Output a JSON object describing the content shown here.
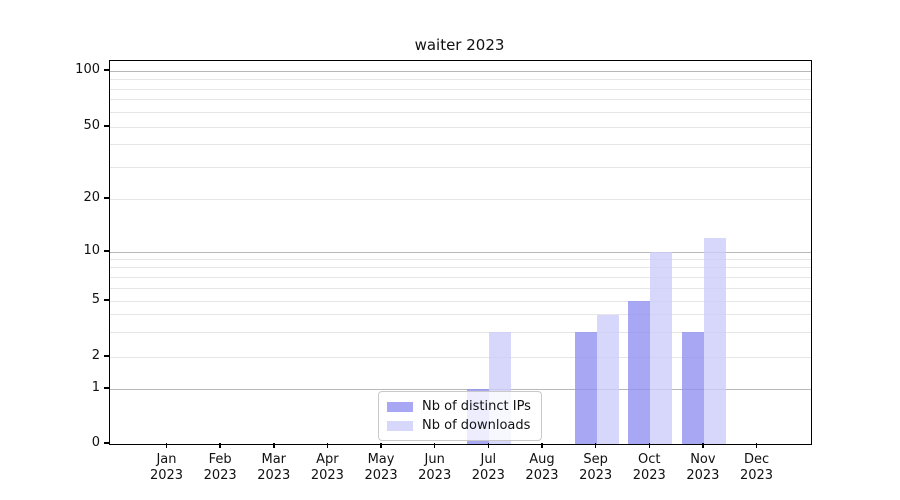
{
  "chart_data": {
    "type": "bar",
    "title": "waiter 2023",
    "x_months": [
      "Jan",
      "Feb",
      "Mar",
      "Apr",
      "May",
      "Jun",
      "Jul",
      "Aug",
      "Sep",
      "Oct",
      "Nov",
      "Dec"
    ],
    "x_year": "2023",
    "categories": [
      "Jan 2023",
      "Feb 2023",
      "Mar 2023",
      "Apr 2023",
      "May 2023",
      "Jun 2023",
      "Jul 2023",
      "Aug 2023",
      "Sep 2023",
      "Oct 2023",
      "Nov 2023",
      "Dec 2023"
    ],
    "series": [
      {
        "name": "Nb of distinct IPs",
        "color": "rgba(145,145,240,0.8)",
        "values": [
          0,
          0,
          0,
          0,
          0,
          0,
          1,
          0,
          3,
          5,
          3,
          0
        ]
      },
      {
        "name": "Nb of downloads",
        "color": "rgba(205,205,250,0.8)",
        "values": [
          0,
          0,
          0,
          0,
          0,
          0,
          3,
          0,
          4,
          10,
          12,
          0
        ]
      }
    ],
    "y_ticks": [
      0,
      1,
      2,
      5,
      10,
      20,
      50,
      100
    ],
    "y_major_gridlines": [
      1,
      10,
      100
    ],
    "y_minor_gridlines": [
      2,
      3,
      4,
      5,
      6,
      7,
      8,
      9,
      20,
      30,
      40,
      50,
      60,
      70,
      80,
      90
    ],
    "y_scale": "symlog",
    "ylim": [
      0,
      110
    ],
    "grid": "on",
    "legend_position": "inside-bottom-center"
  },
  "colors": {
    "major_grid": "#b8b8b8",
    "minor_grid": "#e6e6e6",
    "axis": "#000000",
    "background": "#ffffff"
  }
}
